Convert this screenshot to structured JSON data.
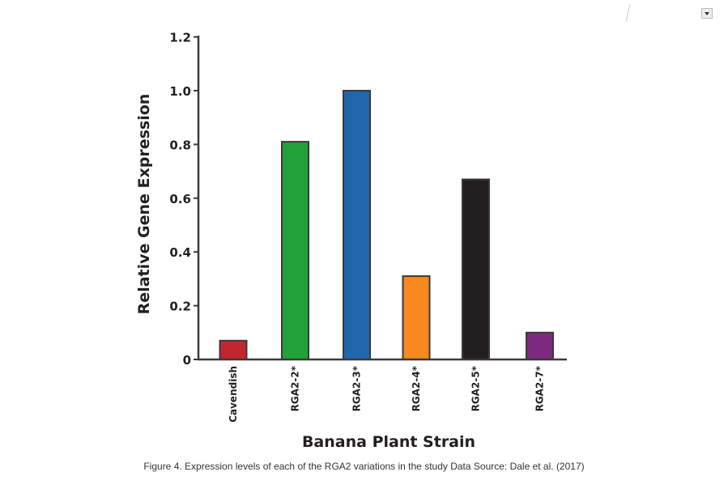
{
  "chart_data": {
    "type": "bar",
    "categories": [
      "Cavendish",
      "RGA2-2*",
      "RGA2-3*",
      "RGA2-4*",
      "RGA2-5*",
      "RGA2-7*"
    ],
    "values": [
      0.07,
      0.81,
      1.0,
      0.31,
      0.67,
      0.1
    ],
    "colors": [
      "#c1272d",
      "#22a03a",
      "#2166ad",
      "#f7891f",
      "#231f20",
      "#7b2a7d"
    ],
    "title": "",
    "xlabel": "Banana Plant Strain",
    "ylabel": "Relative Gene Expression",
    "ylim": [
      0,
      1.2
    ],
    "yticks": [
      0,
      0.2,
      0.4,
      0.6,
      0.8,
      1.0,
      1.2
    ],
    "ytick_labels": [
      "0",
      "0.2",
      "0.4",
      "0.6",
      "0.8",
      "1.0",
      "1.2"
    ],
    "grid": false
  },
  "caption": "Figure 4. Expression levels of each of the RGA2 variations in the study Data Source: Dale et al. (2017)"
}
